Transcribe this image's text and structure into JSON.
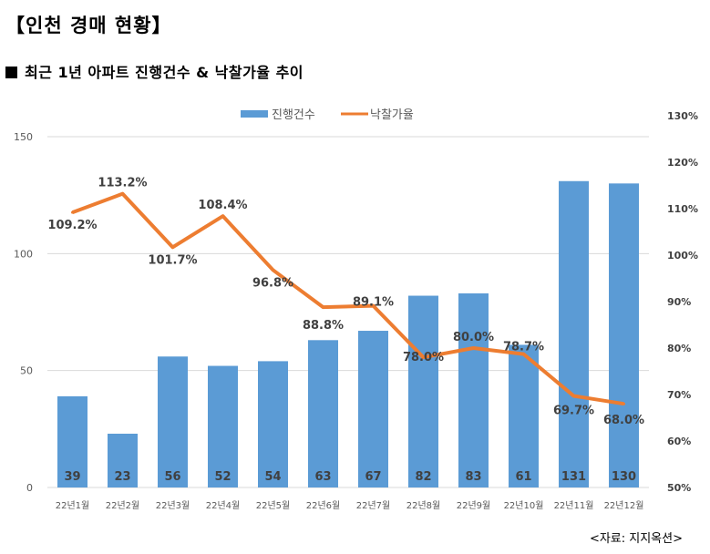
{
  "header": {
    "title": "【인천 경매 현황】",
    "subtitle": "최근 1년 아파트 진행건수 & 낙찰가율 추이"
  },
  "source": "<자료: 지지옥션>",
  "colors": {
    "bar": "#5B9BD5",
    "line": "#ED7D31",
    "grid": "#D9D9D9"
  },
  "chart_data": {
    "type": "bar",
    "title": "최근 1년 아파트 진행건수 & 낙찰가율 추이",
    "categories": [
      "22년1월",
      "22년2월",
      "22년3월",
      "22년4월",
      "22년5월",
      "22년6월",
      "22년7월",
      "22년8월",
      "22년9월",
      "22년10월",
      "22년11월",
      "22년12월"
    ],
    "series": [
      {
        "name": "진행건수",
        "type": "bar",
        "axis": "left",
        "values": [
          39,
          23,
          56,
          52,
          54,
          63,
          67,
          82,
          83,
          61,
          131,
          130
        ],
        "labels": [
          "39",
          "23",
          "56",
          "52",
          "54",
          "63",
          "67",
          "82",
          "83",
          "61",
          "131",
          "130"
        ]
      },
      {
        "name": "낙찰가율",
        "type": "line",
        "axis": "right",
        "values": [
          109.2,
          113.2,
          101.7,
          108.4,
          96.8,
          88.8,
          89.1,
          78.0,
          80.0,
          78.7,
          69.7,
          68.0
        ],
        "labels": [
          "109.2%",
          "113.2%",
          "101.7%",
          "108.4%",
          "96.8%",
          "88.8%",
          "89.1%",
          "78.0%",
          "80.0%",
          "78.7%",
          "69.7%",
          "68.0%"
        ]
      }
    ],
    "y_left": {
      "ylim": [
        0,
        150
      ],
      "ticks": [
        "0",
        "50",
        "100",
        "150"
      ],
      "tick_values": [
        0,
        50,
        100,
        150
      ]
    },
    "y_right": {
      "ylim": [
        50,
        130
      ],
      "ticks": [
        "50%",
        "60%",
        "70%",
        "80%",
        "90%",
        "100%",
        "110%",
        "120%",
        "130%"
      ],
      "tick_values": [
        50,
        60,
        70,
        80,
        90,
        100,
        110,
        120,
        130
      ]
    },
    "legend": {
      "position": "top",
      "entries": [
        "진행건수",
        "낙찰가율"
      ]
    },
    "grid": true
  }
}
